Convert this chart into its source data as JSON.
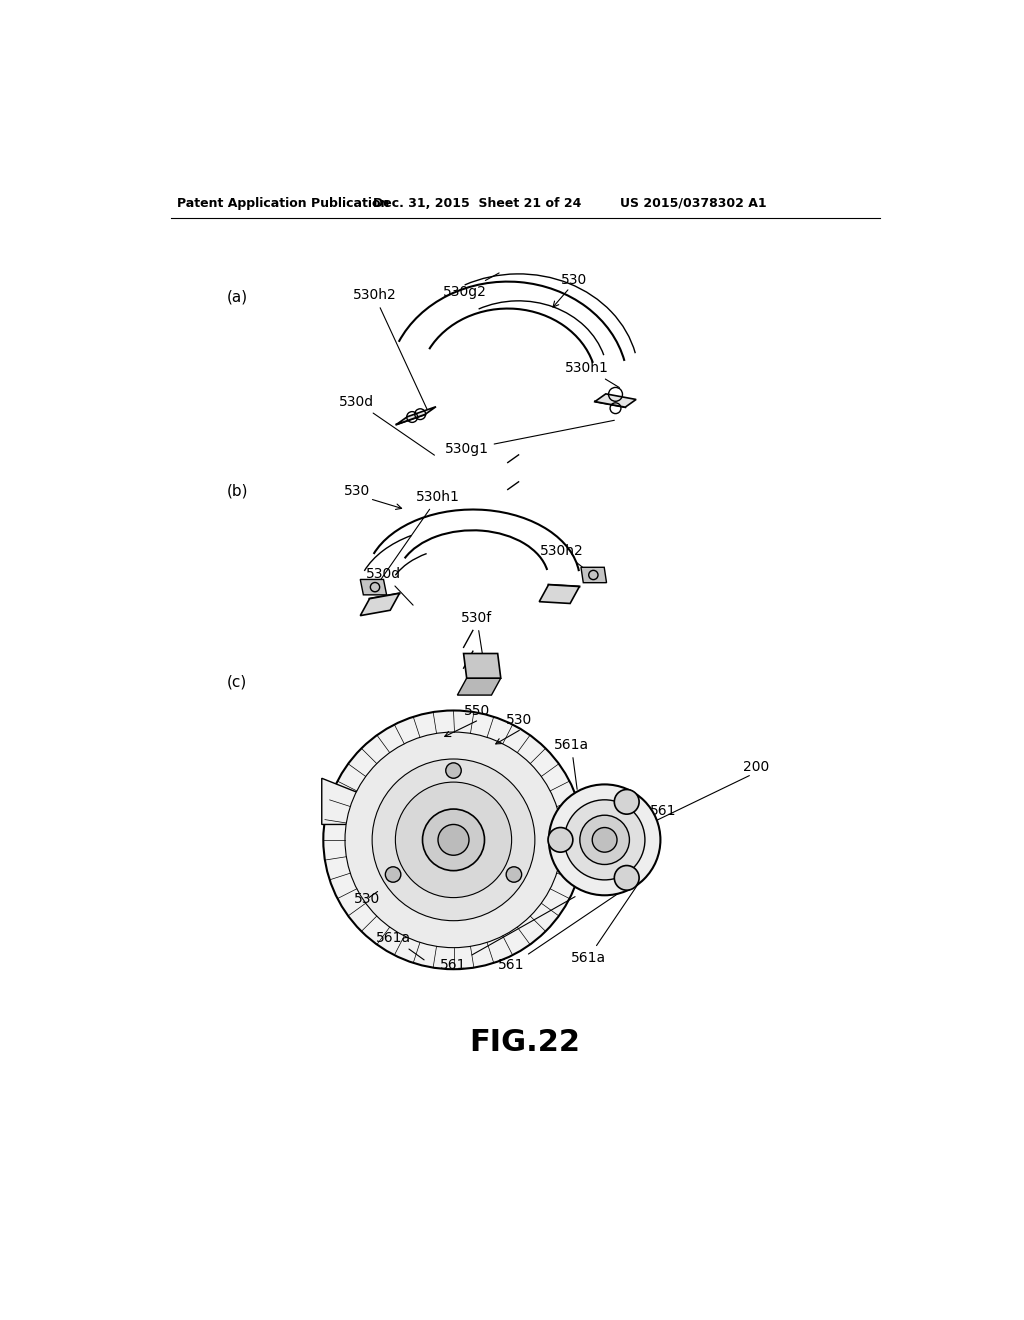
{
  "background_color": "#ffffff",
  "header_left": "Patent Application Publication",
  "header_center": "Dec. 31, 2015  Sheet 21 of 24",
  "header_right": "US 2015/0378302 A1",
  "footer_label": "FIG.22",
  "header_fontsize": 9,
  "footer_fontsize": 22,
  "label_fontsize": 10,
  "panel_a_label": "(a)",
  "panel_b_label": "(b)",
  "panel_c_label": "(c)"
}
